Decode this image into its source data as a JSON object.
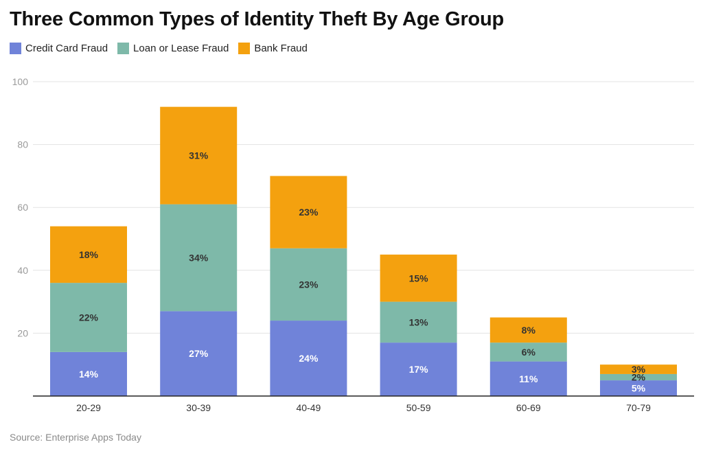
{
  "chart_data": {
    "type": "bar",
    "stacked": true,
    "title": "Three Common Types of Identity Theft By Age Group",
    "source": "Source: Enterprise Apps Today",
    "categories": [
      "20-29",
      "30-39",
      "40-49",
      "50-59",
      "60-69",
      "70-79"
    ],
    "series": [
      {
        "name": "Credit Card Fraud",
        "color": "#7083d9",
        "values": [
          14,
          27,
          24,
          17,
          11,
          5
        ],
        "labels": [
          "14%",
          "27%",
          "24%",
          "17%",
          "11%",
          "5%"
        ],
        "label_color": "#ffffff"
      },
      {
        "name": "Loan or Lease Fraud",
        "color": "#7eb9a9",
        "values": [
          22,
          34,
          23,
          13,
          6,
          2
        ],
        "labels": [
          "22%",
          "34%",
          "23%",
          "13%",
          "6%",
          "2%"
        ],
        "label_color": "#333333"
      },
      {
        "name": "Bank Fraud",
        "color": "#f4a10f",
        "values": [
          18,
          31,
          23,
          15,
          8,
          3
        ],
        "labels": [
          "18%",
          "31%",
          "23%",
          "15%",
          "8%",
          "3%"
        ],
        "label_color": "#333333"
      }
    ],
    "ylim": [
      0,
      100
    ],
    "yticks": [
      20,
      40,
      60,
      80,
      100
    ],
    "grid": true,
    "legend_position": "top-left"
  }
}
